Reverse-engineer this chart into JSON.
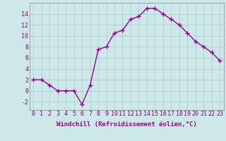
{
  "x": [
    0,
    1,
    2,
    3,
    4,
    5,
    6,
    7,
    8,
    9,
    10,
    11,
    12,
    13,
    14,
    15,
    16,
    17,
    18,
    19,
    20,
    21,
    22,
    23
  ],
  "y": [
    2,
    2,
    1,
    0,
    0,
    0,
    -2.5,
    1,
    7.5,
    8,
    10.5,
    11,
    13,
    13.5,
    15,
    15,
    14,
    13,
    12,
    10.5,
    9,
    8,
    7,
    5.5
  ],
  "line_color": "#990099",
  "marker": "+",
  "marker_size": 4,
  "marker_lw": 1.0,
  "bg_color": "#cce8e8",
  "grid_color": "#aacccc",
  "xlabel": "Windchill (Refroidissement éolien,°C)",
  "xlabel_fontsize": 6.5,
  "tick_fontsize": 6,
  "ylim": [
    -3.5,
    16
  ],
  "xlim": [
    -0.5,
    23.5
  ],
  "yticks": [
    -2,
    0,
    2,
    4,
    6,
    8,
    10,
    12,
    14
  ],
  "xticks": [
    0,
    1,
    2,
    3,
    4,
    5,
    6,
    7,
    8,
    9,
    10,
    11,
    12,
    13,
    14,
    15,
    16,
    17,
    18,
    19,
    20,
    21,
    22,
    23
  ],
  "line_width": 1.0
}
